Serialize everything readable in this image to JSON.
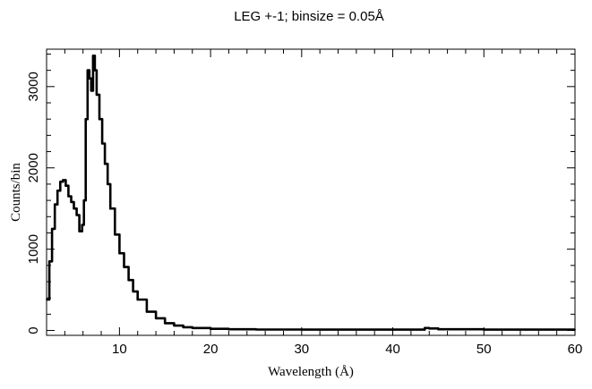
{
  "chart_data": {
    "type": "line",
    "title": "LEG +-1; binsize = 0.05Å",
    "xlabel": "Wavelength (Å)",
    "ylabel": "Counts/bin",
    "xlim": [
      2,
      60
    ],
    "ylim": [
      -60,
      3460
    ],
    "x_ticks": [
      10,
      20,
      30,
      40,
      50,
      60
    ],
    "x_tick_labels": [
      "10",
      "20",
      "30",
      "40",
      "50",
      "60"
    ],
    "y_ticks": [
      0,
      1000,
      2000,
      3000
    ],
    "y_tick_labels": [
      "0",
      "1000",
      "2000",
      "3000"
    ],
    "x_minor_step": 2,
    "y_minor_step": 200,
    "series": [
      {
        "color": "#000000",
        "x": [
          2.0,
          2.3,
          2.6,
          2.9,
          3.2,
          3.5,
          3.8,
          4.1,
          4.4,
          4.7,
          5.0,
          5.3,
          5.6,
          5.9,
          6.1,
          6.3,
          6.5,
          6.7,
          6.9,
          7.1,
          7.3,
          7.5,
          7.8,
          8.1,
          8.4,
          8.7,
          9.0,
          9.5,
          10.0,
          10.5,
          11.0,
          11.5,
          12.0,
          13.0,
          14.0,
          15.0,
          16.0,
          17.0,
          18.0,
          20.0,
          22.0,
          25.0,
          30.0,
          35.0,
          40.0,
          43.0,
          43.5,
          44.0,
          45.0,
          50.0,
          55.0,
          60.0
        ],
        "y": [
          380,
          850,
          1250,
          1550,
          1720,
          1830,
          1850,
          1780,
          1650,
          1580,
          1500,
          1420,
          1220,
          1300,
          1600,
          2600,
          3200,
          3100,
          2950,
          3380,
          3200,
          2900,
          2600,
          2300,
          2050,
          1800,
          1500,
          1180,
          950,
          780,
          620,
          480,
          380,
          230,
          150,
          90,
          60,
          40,
          30,
          20,
          15,
          12,
          10,
          10,
          10,
          10,
          30,
          25,
          15,
          10,
          10,
          10
        ]
      }
    ]
  }
}
